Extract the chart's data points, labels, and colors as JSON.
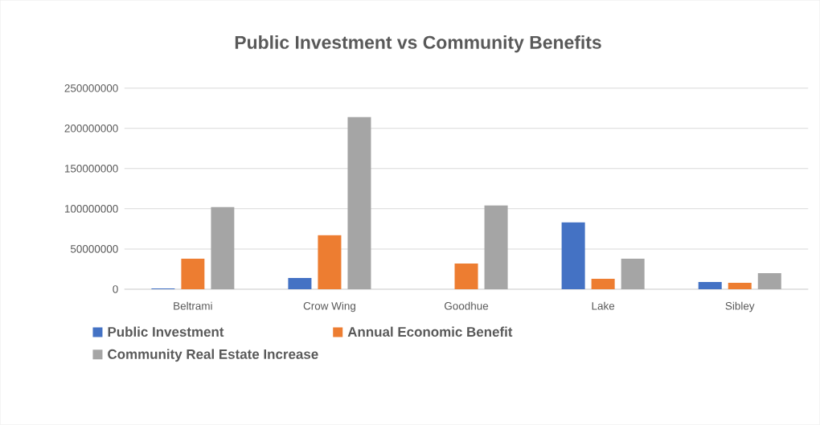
{
  "chart_data": {
    "type": "bar",
    "title": "Public Investment vs Community Benefits",
    "categories": [
      "Beltrami",
      "Crow Wing",
      "Goodhue",
      "Lake",
      "Sibley"
    ],
    "series": [
      {
        "name": "Public Investment",
        "color": "#4472c4",
        "values": [
          1000000,
          14000000,
          null,
          83000000,
          9000000
        ]
      },
      {
        "name": "Annual Economic Benefit",
        "color": "#ed7d31",
        "values": [
          38000000,
          67000000,
          32000000,
          13000000,
          8000000
        ]
      },
      {
        "name": "Community Real Estate Increase",
        "color": "#a5a5a5",
        "values": [
          102000000,
          214000000,
          104000000,
          38000000,
          20000000
        ]
      }
    ],
    "ylim": [
      0,
      250000000
    ],
    "yticks": [
      0,
      50000000,
      100000000,
      150000000,
      200000000,
      250000000
    ],
    "grid": "y",
    "legend": "bottom"
  }
}
